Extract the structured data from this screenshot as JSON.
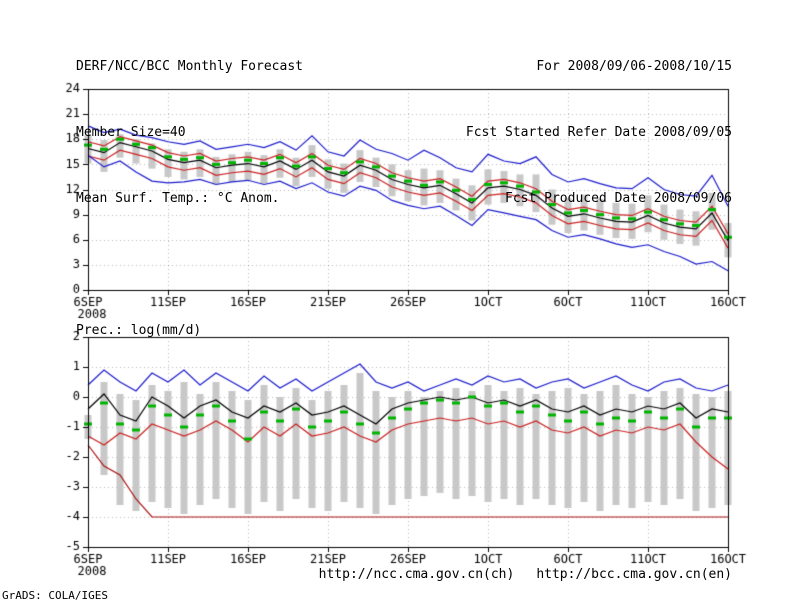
{
  "header": {
    "title": "DERF/NCC/BCC Monthly Forecast",
    "member_size": "Member Size=40",
    "temp_label": "Mean Surf. Temp.: °C Anom.",
    "for_range": "For 2008/09/06-2008/10/15",
    "refer_date": "Fcst Started Refer Date 2008/09/05",
    "produced_date": "Fcst Produced Date 2008/09/06"
  },
  "prec_label": "Prec.: log(mm/d)",
  "footer": {
    "url_ch": "http://ncc.cma.gov.cn(ch)",
    "url_en": "http://bcc.cma.gov.cn(en)",
    "credit": "GrADS: COLA/IGES"
  },
  "chart_data": [
    {
      "type": "line",
      "title": "Mean Surf. Temp.: °C Anom.",
      "xlabel": "",
      "ylabel": "°C Anom.",
      "ylim": [
        0,
        24
      ],
      "y_ticks": [
        0,
        3,
        6,
        9,
        12,
        15,
        18,
        21,
        24
      ],
      "grid": true,
      "legend": "none",
      "categories": [
        "6SEP",
        "7SEP",
        "8SEP",
        "9SEP",
        "10SEP",
        "11SEP",
        "12SEP",
        "13SEP",
        "14SEP",
        "15SEP",
        "16SEP",
        "17SEP",
        "18SEP",
        "19SEP",
        "20SEP",
        "21SEP",
        "22SEP",
        "23SEP",
        "24SEP",
        "25SEP",
        "26SEP",
        "27SEP",
        "28SEP",
        "29SEP",
        "30SEP",
        "1OCT",
        "2OCT",
        "3OCT",
        "4OCT",
        "5OCT",
        "6OCT",
        "7OCT",
        "8OCT",
        "9OCT",
        "10OCT",
        "11OCT",
        "12OCT",
        "13OCT",
        "14OCT",
        "15OCT",
        "16OCT"
      ],
      "x_ticks": [
        {
          "i": 0,
          "label": "6SEP",
          "sub": "2008"
        },
        {
          "i": 5,
          "label": "11SEP"
        },
        {
          "i": 10,
          "label": "16SEP"
        },
        {
          "i": 15,
          "label": "21SEP"
        },
        {
          "i": 20,
          "label": "26SEP"
        },
        {
          "i": 25,
          "label": "1OCT"
        },
        {
          "i": 30,
          "label": "6OCT"
        },
        {
          "i": 35,
          "label": "11OCT"
        },
        {
          "i": 40,
          "label": "16OCT"
        }
      ],
      "bars": {
        "name": "ensemble-spread",
        "color": "#c8c8c8",
        "top": [
          18.5,
          17.9,
          18.6,
          18.0,
          17.5,
          16.8,
          16.5,
          16.8,
          15.9,
          16.2,
          16.5,
          16.1,
          16.8,
          15.8,
          17.3,
          15.6,
          15.1,
          16.7,
          15.8,
          15.0,
          14.3,
          14.5,
          14.3,
          13.3,
          12.5,
          14.4,
          14.2,
          13.8,
          13.8,
          12.0,
          11.0,
          11.4,
          10.9,
          10.4,
          10.3,
          11.3,
          10.2,
          9.6,
          9.4,
          11.6,
          8.0
        ],
        "bottom": [
          15.1,
          14.1,
          15.8,
          15.1,
          14.5,
          13.5,
          13.2,
          13.5,
          12.6,
          12.9,
          13.1,
          12.7,
          13.4,
          12.4,
          13.5,
          12.1,
          11.6,
          12.9,
          12.3,
          11.2,
          10.6,
          10.1,
          10.4,
          9.5,
          8.3,
          10.2,
          10.4,
          10.0,
          9.3,
          7.8,
          6.8,
          7.1,
          6.6,
          6.2,
          6.1,
          6.9,
          6.0,
          5.5,
          5.3,
          7.2,
          3.9
        ]
      },
      "series": [
        {
          "name": "maximum",
          "color": "#1a1acc",
          "style": "line",
          "values": [
            19.6,
            18.8,
            19.2,
            18.5,
            18.2,
            17.7,
            17.4,
            17.8,
            16.8,
            17.1,
            17.4,
            17.0,
            17.7,
            16.7,
            18.4,
            16.5,
            16.0,
            17.9,
            16.8,
            16.3,
            15.5,
            16.7,
            15.8,
            14.6,
            14.1,
            16.2,
            15.4,
            15.1,
            15.9,
            13.8,
            12.9,
            13.3,
            12.7,
            12.2,
            12.1,
            13.4,
            12.0,
            11.4,
            11.2,
            13.7,
            10.0
          ]
        },
        {
          "name": "upper",
          "color": "#cc2020",
          "style": "line",
          "values": [
            17.7,
            17.2,
            18.3,
            17.8,
            17.3,
            16.4,
            16.0,
            16.3,
            15.4,
            15.7,
            15.9,
            15.5,
            16.2,
            15.2,
            16.3,
            14.9,
            14.4,
            15.7,
            15.1,
            14.0,
            13.4,
            13.0,
            13.3,
            12.3,
            11.2,
            13.0,
            13.2,
            12.8,
            12.1,
            10.6,
            9.6,
            9.9,
            9.4,
            9.0,
            8.9,
            9.7,
            8.8,
            8.3,
            8.1,
            10.0,
            6.7
          ]
        },
        {
          "name": "ensemble-mean",
          "color": "#000000",
          "style": "line",
          "values": [
            16.9,
            16.4,
            17.6,
            17.1,
            16.6,
            15.6,
            15.2,
            15.5,
            14.6,
            14.9,
            15.1,
            14.7,
            15.4,
            14.4,
            15.5,
            14.1,
            13.6,
            14.9,
            14.3,
            13.2,
            12.6,
            12.2,
            12.5,
            11.5,
            10.4,
            12.2,
            12.4,
            12.0,
            11.3,
            9.8,
            8.8,
            9.1,
            8.6,
            8.2,
            8.1,
            8.9,
            8.0,
            7.5,
            7.3,
            9.2,
            5.9
          ]
        },
        {
          "name": "lower",
          "color": "#cc2020",
          "style": "line",
          "values": [
            16.0,
            15.5,
            16.7,
            16.2,
            15.7,
            14.7,
            14.3,
            14.6,
            13.7,
            14.0,
            14.2,
            13.8,
            14.5,
            13.5,
            14.6,
            13.2,
            12.7,
            14.0,
            13.4,
            12.3,
            11.7,
            11.3,
            11.6,
            10.6,
            9.5,
            11.3,
            11.5,
            11.1,
            10.4,
            8.9,
            7.9,
            8.2,
            7.7,
            7.3,
            7.2,
            8.0,
            7.1,
            6.6,
            6.4,
            8.3,
            5.0
          ]
        },
        {
          "name": "minimum",
          "color": "#1a1acc",
          "style": "line",
          "values": [
            16.1,
            14.7,
            15.4,
            14.1,
            13.0,
            12.8,
            12.9,
            13.2,
            12.6,
            12.9,
            13.1,
            12.6,
            13.0,
            12.1,
            12.8,
            11.7,
            11.2,
            12.4,
            11.9,
            10.7,
            10.1,
            9.7,
            10.0,
            8.9,
            7.7,
            9.6,
            9.2,
            8.8,
            8.4,
            7.1,
            6.3,
            6.6,
            6.1,
            5.5,
            5.1,
            5.4,
            4.6,
            4.0,
            3.1,
            3.4,
            2.3
          ]
        },
        {
          "name": "median",
          "color": "#00b400",
          "style": "dashes",
          "values": [
            17.3,
            16.8,
            18.0,
            17.4,
            17.0,
            15.9,
            15.6,
            15.8,
            15.0,
            15.2,
            15.5,
            15.1,
            15.8,
            14.8,
            15.9,
            14.5,
            14.0,
            15.3,
            14.7,
            13.6,
            13.0,
            12.5,
            12.9,
            11.9,
            10.8,
            12.6,
            12.8,
            12.4,
            11.7,
            10.2,
            9.2,
            9.5,
            9.0,
            8.6,
            8.5,
            9.3,
            8.4,
            7.9,
            7.7,
            9.6,
            6.3
          ]
        }
      ]
    },
    {
      "type": "line",
      "title": "Prec.: log(mm/d)",
      "xlabel": "",
      "ylabel": "log(mm/d)",
      "ylim": [
        -5,
        2
      ],
      "y_ticks": [
        -5,
        -4,
        -3,
        -2,
        -1,
        0,
        1,
        2
      ],
      "grid": true,
      "legend": "none",
      "categories": [
        "6SEP",
        "7SEP",
        "8SEP",
        "9SEP",
        "10SEP",
        "11SEP",
        "12SEP",
        "13SEP",
        "14SEP",
        "15SEP",
        "16SEP",
        "17SEP",
        "18SEP",
        "19SEP",
        "20SEP",
        "21SEP",
        "22SEP",
        "23SEP",
        "24SEP",
        "25SEP",
        "26SEP",
        "27SEP",
        "28SEP",
        "29SEP",
        "30SEP",
        "1OCT",
        "2OCT",
        "3OCT",
        "4OCT",
        "5OCT",
        "6OCT",
        "7OCT",
        "8OCT",
        "9OCT",
        "10OCT",
        "11OCT",
        "12OCT",
        "13OCT",
        "14OCT",
        "15OCT",
        "16OCT"
      ],
      "x_ticks": [
        {
          "i": 0,
          "label": "6SEP",
          "sub": "2008"
        },
        {
          "i": 5,
          "label": "11SEP"
        },
        {
          "i": 10,
          "label": "16SEP"
        },
        {
          "i": 15,
          "label": "21SEP"
        },
        {
          "i": 20,
          "label": "26SEP"
        },
        {
          "i": 25,
          "label": "1OCT"
        },
        {
          "i": 30,
          "label": "6OCT"
        },
        {
          "i": 35,
          "label": "11OCT"
        },
        {
          "i": 40,
          "label": "16OCT"
        }
      ],
      "bars": {
        "name": "ensemble-spread",
        "color": "#c8c8c8",
        "top": [
          -0.6,
          0.5,
          0.1,
          -0.1,
          0.4,
          0.2,
          0.5,
          0.1,
          0.5,
          0.2,
          -0.1,
          0.4,
          0.0,
          0.3,
          -0.1,
          0.2,
          0.4,
          0.8,
          0.2,
          0.0,
          0.2,
          0.0,
          0.2,
          0.3,
          0.2,
          0.4,
          0.2,
          0.3,
          0.1,
          0.2,
          0.3,
          0.1,
          0.2,
          0.4,
          0.1,
          0.0,
          0.2,
          0.3,
          0.1,
          0.0,
          0.2
        ],
        "bottom": [
          -1.4,
          -2.6,
          -3.6,
          -3.8,
          -3.5,
          -3.7,
          -3.9,
          -3.6,
          -3.4,
          -3.7,
          -3.9,
          -3.5,
          -3.8,
          -3.4,
          -3.7,
          -3.8,
          -3.5,
          -3.7,
          -3.9,
          -3.6,
          -3.4,
          -3.3,
          -3.2,
          -3.4,
          -3.3,
          -3.5,
          -3.4,
          -3.6,
          -3.4,
          -3.6,
          -3.7,
          -3.5,
          -3.8,
          -3.6,
          -3.7,
          -3.5,
          -3.6,
          -3.4,
          -3.8,
          -3.7,
          -3.6
        ]
      },
      "series": [
        {
          "name": "maximum",
          "color": "#1a1acc",
          "style": "line",
          "values": [
            0.4,
            0.9,
            0.5,
            0.2,
            0.8,
            0.5,
            0.9,
            0.4,
            0.8,
            0.5,
            0.2,
            0.7,
            0.3,
            0.6,
            0.2,
            0.5,
            0.8,
            1.1,
            0.5,
            0.3,
            0.5,
            0.2,
            0.4,
            0.6,
            0.4,
            0.7,
            0.5,
            0.6,
            0.3,
            0.5,
            0.6,
            0.3,
            0.5,
            0.7,
            0.4,
            0.2,
            0.5,
            0.6,
            0.3,
            0.2,
            0.4
          ]
        },
        {
          "name": "ensemble-mean",
          "color": "#000000",
          "style": "line",
          "values": [
            -0.4,
            0.1,
            -0.6,
            -0.8,
            0.0,
            -0.3,
            -0.7,
            -0.3,
            -0.1,
            -0.5,
            -0.7,
            -0.3,
            -0.5,
            -0.2,
            -0.6,
            -0.5,
            -0.3,
            -0.6,
            -0.9,
            -0.4,
            -0.2,
            -0.1,
            0.0,
            -0.1,
            0.0,
            -0.2,
            -0.1,
            -0.3,
            -0.1,
            -0.4,
            -0.5,
            -0.3,
            -0.6,
            -0.4,
            -0.5,
            -0.3,
            -0.4,
            -0.2,
            -0.7,
            -0.4,
            -0.5
          ]
        },
        {
          "name": "lower",
          "color": "#cc2020",
          "style": "line",
          "values": [
            -1.3,
            -1.6,
            -1.2,
            -1.4,
            -0.9,
            -1.1,
            -1.3,
            -1.1,
            -0.8,
            -1.1,
            -1.5,
            -1.0,
            -1.3,
            -0.9,
            -1.3,
            -1.2,
            -1.0,
            -1.3,
            -1.5,
            -1.1,
            -0.9,
            -0.8,
            -0.7,
            -0.8,
            -0.7,
            -0.9,
            -0.8,
            -1.0,
            -0.8,
            -1.1,
            -1.2,
            -1.0,
            -1.3,
            -1.1,
            -1.2,
            -1.0,
            -1.1,
            -0.9,
            -1.5,
            -2.0,
            -2.4
          ]
        },
        {
          "name": "minimum",
          "color": "#aa1010",
          "style": "line",
          "values": [
            -1.6,
            -2.3,
            -2.6,
            -3.4,
            -4.0,
            -4.0,
            -4.0,
            -4.0,
            -4.0,
            -4.0,
            -4.0,
            -4.0,
            -4.0,
            -4.0,
            -4.0,
            -4.0,
            -4.0,
            -4.0,
            -4.0,
            -4.0,
            -4.0,
            -4.0,
            -4.0,
            -4.0,
            -4.0,
            -4.0,
            -4.0,
            -4.0,
            -4.0,
            -4.0,
            -4.0,
            -4.0,
            -4.0,
            -4.0,
            -4.0,
            -4.0,
            -4.0,
            -4.0,
            -4.0,
            -4.0,
            -4.0
          ]
        },
        {
          "name": "median",
          "color": "#00b400",
          "style": "dashes",
          "values": [
            -0.9,
            -0.2,
            -0.9,
            -1.1,
            -0.3,
            -0.6,
            -1.0,
            -0.6,
            -0.3,
            -0.8,
            -1.4,
            -0.5,
            -0.8,
            -0.4,
            -1.0,
            -0.8,
            -0.5,
            -0.9,
            -1.2,
            -0.7,
            -0.4,
            -0.2,
            -0.1,
            -0.2,
            0.0,
            -0.3,
            -0.2,
            -0.5,
            -0.3,
            -0.6,
            -0.8,
            -0.5,
            -0.9,
            -0.7,
            -0.8,
            -0.5,
            -0.7,
            -0.4,
            -1.0,
            -0.7,
            -0.7
          ]
        }
      ]
    }
  ]
}
